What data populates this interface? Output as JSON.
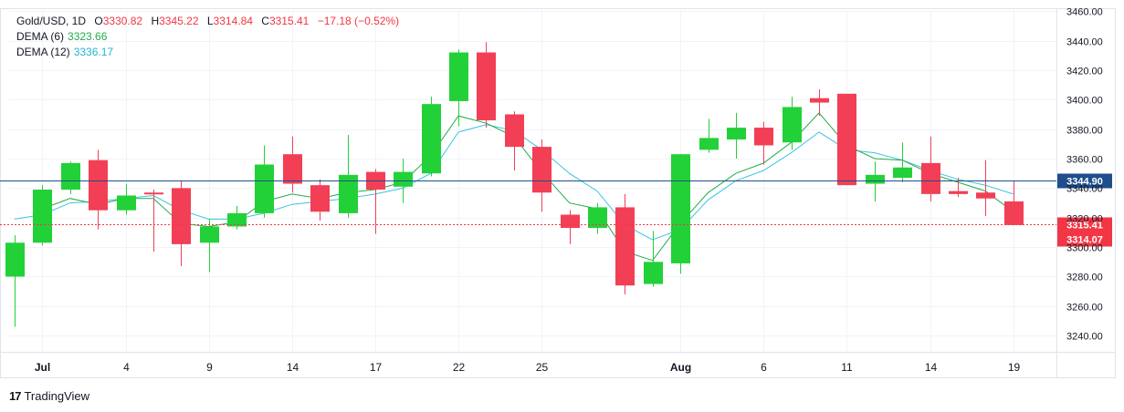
{
  "legend": {
    "symbol": "Gold/USD, 1D",
    "o_label": "O",
    "open": "3330.82",
    "h_label": "H",
    "high": "3345.22",
    "l_label": "L",
    "low": "3314.84",
    "c_label": "C",
    "close": "3315.41",
    "change": "−17.18 (−0.52%)",
    "dema6_label": "DEMA (6)",
    "dema6_value": "3323.66",
    "dema12_label": "DEMA (12)",
    "dema12_value": "3336.17"
  },
  "brand": {
    "logo": "17",
    "name": "TradingView"
  },
  "colors": {
    "up": "#22d138",
    "down": "#f23f55",
    "dema6": "#22ab4a",
    "dema12": "#3cc4df",
    "hline": "#1e4e8c",
    "price": "#f23645"
  },
  "chart_data": {
    "type": "candlestick",
    "ylim": [
      3229,
      3462
    ],
    "yticks": [
      "3240.00",
      "3260.00",
      "3280.00",
      "3300.00",
      "3320.00",
      "3340.00",
      "3360.00",
      "3380.00",
      "3400.00",
      "3420.00",
      "3440.00",
      "3460.00"
    ],
    "xticks": [
      {
        "i": 1,
        "label": "Jul"
      },
      {
        "i": 4,
        "label": "4"
      },
      {
        "i": 7,
        "label": "9"
      },
      {
        "i": 10,
        "label": "14"
      },
      {
        "i": 13,
        "label": "17"
      },
      {
        "i": 16,
        "label": "22"
      },
      {
        "i": 19,
        "label": "25"
      },
      {
        "i": 24,
        "label": "Aug"
      },
      {
        "i": 27,
        "label": "6"
      },
      {
        "i": 30,
        "label": "11"
      },
      {
        "i": 33,
        "label": "14"
      },
      {
        "i": 36,
        "label": "19"
      }
    ],
    "candles": [
      {
        "o": 3280,
        "h": 3308,
        "l": 3246,
        "c": 3303
      },
      {
        "o": 3303,
        "h": 3342,
        "l": 3301,
        "c": 3339
      },
      {
        "o": 3339,
        "h": 3358,
        "l": 3336,
        "c": 3357
      },
      {
        "o": 3359,
        "h": 3366,
        "l": 3312,
        "c": 3325
      },
      {
        "o": 3325,
        "h": 3343,
        "l": 3322,
        "c": 3335
      },
      {
        "o": 3337,
        "h": 3339,
        "l": 3297,
        "c": 3336
      },
      {
        "o": 3340,
        "h": 3345,
        "l": 3287,
        "c": 3302
      },
      {
        "o": 3303,
        "h": 3319,
        "l": 3283,
        "c": 3314
      },
      {
        "o": 3314,
        "h": 3328,
        "l": 3312,
        "c": 3323
      },
      {
        "o": 3323,
        "h": 3369,
        "l": 3320,
        "c": 3356
      },
      {
        "o": 3363,
        "h": 3375,
        "l": 3337,
        "c": 3343
      },
      {
        "o": 3342,
        "h": 3346,
        "l": 3318,
        "c": 3324
      },
      {
        "o": 3323,
        "h": 3376,
        "l": 3320,
        "c": 3349
      },
      {
        "o": 3351,
        "h": 3353,
        "l": 3309,
        "c": 3339
      },
      {
        "o": 3341,
        "h": 3360,
        "l": 3330,
        "c": 3351
      },
      {
        "o": 3350,
        "h": 3402,
        "l": 3348,
        "c": 3397
      },
      {
        "o": 3399,
        "h": 3434,
        "l": 3382,
        "c": 3432
      },
      {
        "o": 3432,
        "h": 3439,
        "l": 3381,
        "c": 3386
      },
      {
        "o": 3390,
        "h": 3392,
        "l": 3352,
        "c": 3368
      },
      {
        "o": 3368,
        "h": 3373,
        "l": 3324,
        "c": 3337
      },
      {
        "o": 3322,
        "h": 3325,
        "l": 3302,
        "c": 3313
      },
      {
        "o": 3313,
        "h": 3330,
        "l": 3309,
        "c": 3327
      },
      {
        "o": 3327,
        "h": 3336,
        "l": 3268,
        "c": 3274
      },
      {
        "o": 3275,
        "h": 3311,
        "l": 3273,
        "c": 3290
      },
      {
        "o": 3289,
        "h": 3363,
        "l": 3282,
        "c": 3363
      },
      {
        "o": 3366,
        "h": 3387,
        "l": 3364,
        "c": 3374
      },
      {
        "o": 3373,
        "h": 3391,
        "l": 3360,
        "c": 3381
      },
      {
        "o": 3381,
        "h": 3385,
        "l": 3356,
        "c": 3369
      },
      {
        "o": 3371,
        "h": 3402,
        "l": 3366,
        "c": 3395
      },
      {
        "o": 3401,
        "h": 3407,
        "l": 3389,
        "c": 3398
      },
      {
        "o": 3404,
        "h": 3404,
        "l": 3342,
        "c": 3342
      },
      {
        "o": 3343,
        "h": 3358,
        "l": 3331,
        "c": 3349
      },
      {
        "o": 3347,
        "h": 3371,
        "l": 3344,
        "c": 3354
      },
      {
        "o": 3357,
        "h": 3375,
        "l": 3331,
        "c": 3336
      },
      {
        "o": 3338,
        "h": 3347,
        "l": 3334,
        "c": 3336
      },
      {
        "o": 3337,
        "h": 3359,
        "l": 3321,
        "c": 3333
      },
      {
        "o": 3331,
        "h": 3345,
        "l": 3315,
        "c": 3315
      }
    ],
    "dema6": [
      null,
      3326,
      3333,
      3329,
      3333,
      3333,
      3316,
      3314,
      3317,
      3331,
      3336,
      3333,
      3337,
      3339,
      3344,
      3362,
      3389,
      3384,
      3375,
      3351,
      3330,
      3326,
      3297,
      3291,
      3316,
      3337,
      3350,
      3357,
      3371,
      3391,
      3369,
      3360,
      3359,
      3350,
      3344,
      3338,
      3324
    ],
    "dema12": [
      3319,
      3322,
      3330,
      3331,
      3333,
      3335,
      3325,
      3319,
      3319,
      3323,
      3329,
      3331,
      3333,
      3336,
      3340,
      3350,
      3378,
      3383,
      3379,
      3366,
      3350,
      3338,
      3315,
      3305,
      3312,
      3332,
      3345,
      3352,
      3364,
      3378,
      3366,
      3364,
      3359,
      3352,
      3346,
      3342,
      3336
    ],
    "hlines": [
      {
        "value": 3344.9,
        "label": "3344.90"
      }
    ],
    "price_lines": [
      {
        "value": 3315.41,
        "label": "3315.41"
      },
      {
        "value": 3314.07,
        "label": "3314.07"
      }
    ]
  }
}
